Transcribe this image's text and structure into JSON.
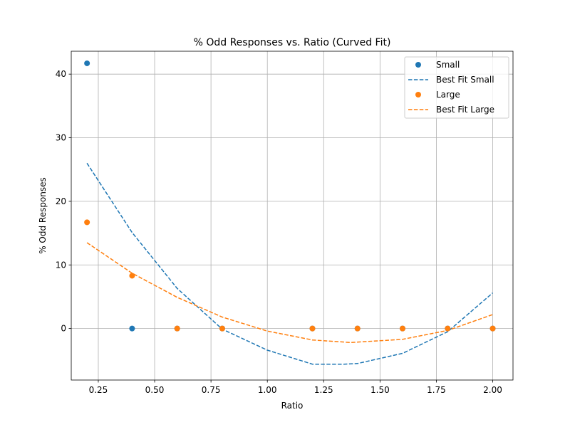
{
  "chart_data": {
    "type": "scatter",
    "title": "% Odd Responses vs. Ratio (Curved Fit)",
    "xlabel": "Ratio",
    "ylabel": "% Odd Responses",
    "xlim": [
      0.13,
      2.09
    ],
    "ylim": [
      -8.1,
      43.6
    ],
    "xticks": [
      0.25,
      0.5,
      0.75,
      1.0,
      1.25,
      1.5,
      1.75,
      2.0
    ],
    "xtick_labels": [
      "0.25",
      "0.50",
      "0.75",
      "1.00",
      "1.25",
      "1.50",
      "1.75",
      "2.00"
    ],
    "yticks": [
      0,
      10,
      20,
      30,
      40
    ],
    "ytick_labels": [
      "0",
      "10",
      "20",
      "30",
      "40"
    ],
    "grid": true,
    "legend_position": "top-right",
    "series": [
      {
        "name": "Small",
        "kind": "scatter",
        "color": "#1f77b4",
        "points": [
          [
            0.2,
            41.7
          ],
          [
            0.4,
            0
          ],
          [
            0.6,
            0
          ],
          [
            0.8,
            0
          ],
          [
            1.2,
            0
          ],
          [
            1.4,
            0
          ],
          [
            1.6,
            0
          ],
          [
            1.8,
            0
          ],
          [
            2.0,
            0
          ]
        ]
      },
      {
        "name": "Best Fit Small",
        "kind": "line",
        "style": "dashed",
        "color": "#1f77b4",
        "points": [
          [
            0.2,
            26.0
          ],
          [
            0.4,
            15.1
          ],
          [
            0.6,
            6.3
          ],
          [
            0.8,
            -0.1
          ],
          [
            1.0,
            -3.4
          ],
          [
            1.2,
            -5.6
          ],
          [
            1.34,
            -5.6
          ],
          [
            1.4,
            -5.5
          ],
          [
            1.6,
            -3.9
          ],
          [
            1.8,
            -0.5
          ],
          [
            2.0,
            5.6
          ]
        ]
      },
      {
        "name": "Large",
        "kind": "scatter",
        "color": "#ff7f0e",
        "points": [
          [
            0.2,
            16.7
          ],
          [
            0.4,
            8.3
          ],
          [
            0.6,
            0
          ],
          [
            0.8,
            0
          ],
          [
            1.2,
            0
          ],
          [
            1.4,
            0
          ],
          [
            1.6,
            0
          ],
          [
            1.8,
            0
          ],
          [
            2.0,
            0
          ]
        ]
      },
      {
        "name": "Best Fit Large",
        "kind": "line",
        "style": "dashed",
        "color": "#ff7f0e",
        "points": [
          [
            0.2,
            13.5
          ],
          [
            0.4,
            8.7
          ],
          [
            0.6,
            4.9
          ],
          [
            0.8,
            1.8
          ],
          [
            1.0,
            -0.4
          ],
          [
            1.2,
            -1.8
          ],
          [
            1.37,
            -2.2
          ],
          [
            1.6,
            -1.7
          ],
          [
            1.8,
            -0.3
          ],
          [
            2.0,
            2.2
          ]
        ]
      }
    ]
  }
}
